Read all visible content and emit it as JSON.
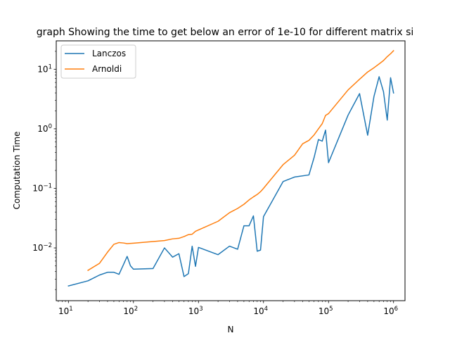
{
  "chart_data": {
    "type": "line",
    "title": "graph Showing the time to get below an error of 1e-10 for different matrix si",
    "xlabel": "N",
    "ylabel": "Computation Time",
    "xscale": "log",
    "yscale": "log",
    "xlim": [
      6.5,
      1500000
    ],
    "ylim": [
      0.0013,
      30
    ],
    "grid": false,
    "legend_position": "top-left",
    "x_ticks": [
      {
        "value": 10,
        "base": "10",
        "exp": "1"
      },
      {
        "value": 100,
        "base": "10",
        "exp": "2"
      },
      {
        "value": 1000,
        "base": "10",
        "exp": "3"
      },
      {
        "value": 10000,
        "base": "10",
        "exp": "4"
      },
      {
        "value": 100000,
        "base": "10",
        "exp": "5"
      },
      {
        "value": 1000000,
        "base": "10",
        "exp": "6"
      }
    ],
    "y_ticks": [
      {
        "value": 0.01,
        "base": "10",
        "exp": "−2"
      },
      {
        "value": 0.1,
        "base": "10",
        "exp": "−1"
      },
      {
        "value": 1,
        "base": "10",
        "exp": "0"
      },
      {
        "value": 10,
        "base": "10",
        "exp": "1"
      }
    ],
    "series": [
      {
        "name": "Lanczos",
        "color": "#1f77b4",
        "points": [
          [
            10,
            0.0023
          ],
          [
            20,
            0.0028
          ],
          [
            30,
            0.0035
          ],
          [
            40,
            0.0039
          ],
          [
            50,
            0.0039
          ],
          [
            60,
            0.0036
          ],
          [
            70,
            0.0052
          ],
          [
            80,
            0.0072
          ],
          [
            90,
            0.005
          ],
          [
            100,
            0.0044
          ],
          [
            200,
            0.0045
          ],
          [
            300,
            0.01
          ],
          [
            400,
            0.007
          ],
          [
            500,
            0.008
          ],
          [
            600,
            0.0033
          ],
          [
            700,
            0.0037
          ],
          [
            800,
            0.0107
          ],
          [
            900,
            0.0049
          ],
          [
            1000,
            0.0102
          ],
          [
            2000,
            0.0077
          ],
          [
            3000,
            0.0107
          ],
          [
            4000,
            0.0095
          ],
          [
            5000,
            0.0235
          ],
          [
            6000,
            0.0235
          ],
          [
            7000,
            0.0345
          ],
          [
            8000,
            0.0088
          ],
          [
            9000,
            0.0092
          ],
          [
            10000,
            0.0335
          ],
          [
            20000,
            0.13
          ],
          [
            30000,
            0.155
          ],
          [
            50000,
            0.168
          ],
          [
            60000,
            0.33
          ],
          [
            70000,
            0.66
          ],
          [
            80000,
            0.62
          ],
          [
            90000,
            0.95
          ],
          [
            100000,
            0.27
          ],
          [
            200000,
            1.7
          ],
          [
            300000,
            3.9
          ],
          [
            400000,
            0.78
          ],
          [
            500000,
            3.5
          ],
          [
            600000,
            7.5
          ],
          [
            700000,
            4.2
          ],
          [
            800000,
            1.4
          ],
          [
            900000,
            7.2
          ],
          [
            1000000,
            4.0
          ]
        ]
      },
      {
        "name": "Arnoldi",
        "color": "#ff7f0e",
        "points": [
          [
            20,
            0.0042
          ],
          [
            30,
            0.0055
          ],
          [
            40,
            0.0085
          ],
          [
            50,
            0.0115
          ],
          [
            60,
            0.0123
          ],
          [
            70,
            0.0121
          ],
          [
            80,
            0.0118
          ],
          [
            100,
            0.012
          ],
          [
            200,
            0.0128
          ],
          [
            300,
            0.0133
          ],
          [
            400,
            0.0142
          ],
          [
            500,
            0.0145
          ],
          [
            600,
            0.0155
          ],
          [
            700,
            0.0167
          ],
          [
            800,
            0.017
          ],
          [
            900,
            0.019
          ],
          [
            1000,
            0.02
          ],
          [
            2000,
            0.028
          ],
          [
            3000,
            0.039
          ],
          [
            4000,
            0.046
          ],
          [
            5000,
            0.054
          ],
          [
            6000,
            0.064
          ],
          [
            7000,
            0.072
          ],
          [
            8000,
            0.079
          ],
          [
            9000,
            0.088
          ],
          [
            10000,
            0.1
          ],
          [
            20000,
            0.25
          ],
          [
            30000,
            0.36
          ],
          [
            40000,
            0.56
          ],
          [
            50000,
            0.64
          ],
          [
            60000,
            0.79
          ],
          [
            70000,
            1.0
          ],
          [
            80000,
            1.22
          ],
          [
            90000,
            1.68
          ],
          [
            100000,
            1.8
          ],
          [
            200000,
            4.5
          ],
          [
            300000,
            6.8
          ],
          [
            400000,
            9.0
          ],
          [
            500000,
            10.6
          ],
          [
            600000,
            12.3
          ],
          [
            700000,
            14.0
          ],
          [
            800000,
            16.3
          ],
          [
            900000,
            18.2
          ],
          [
            1000000,
            20.5
          ]
        ]
      }
    ]
  }
}
